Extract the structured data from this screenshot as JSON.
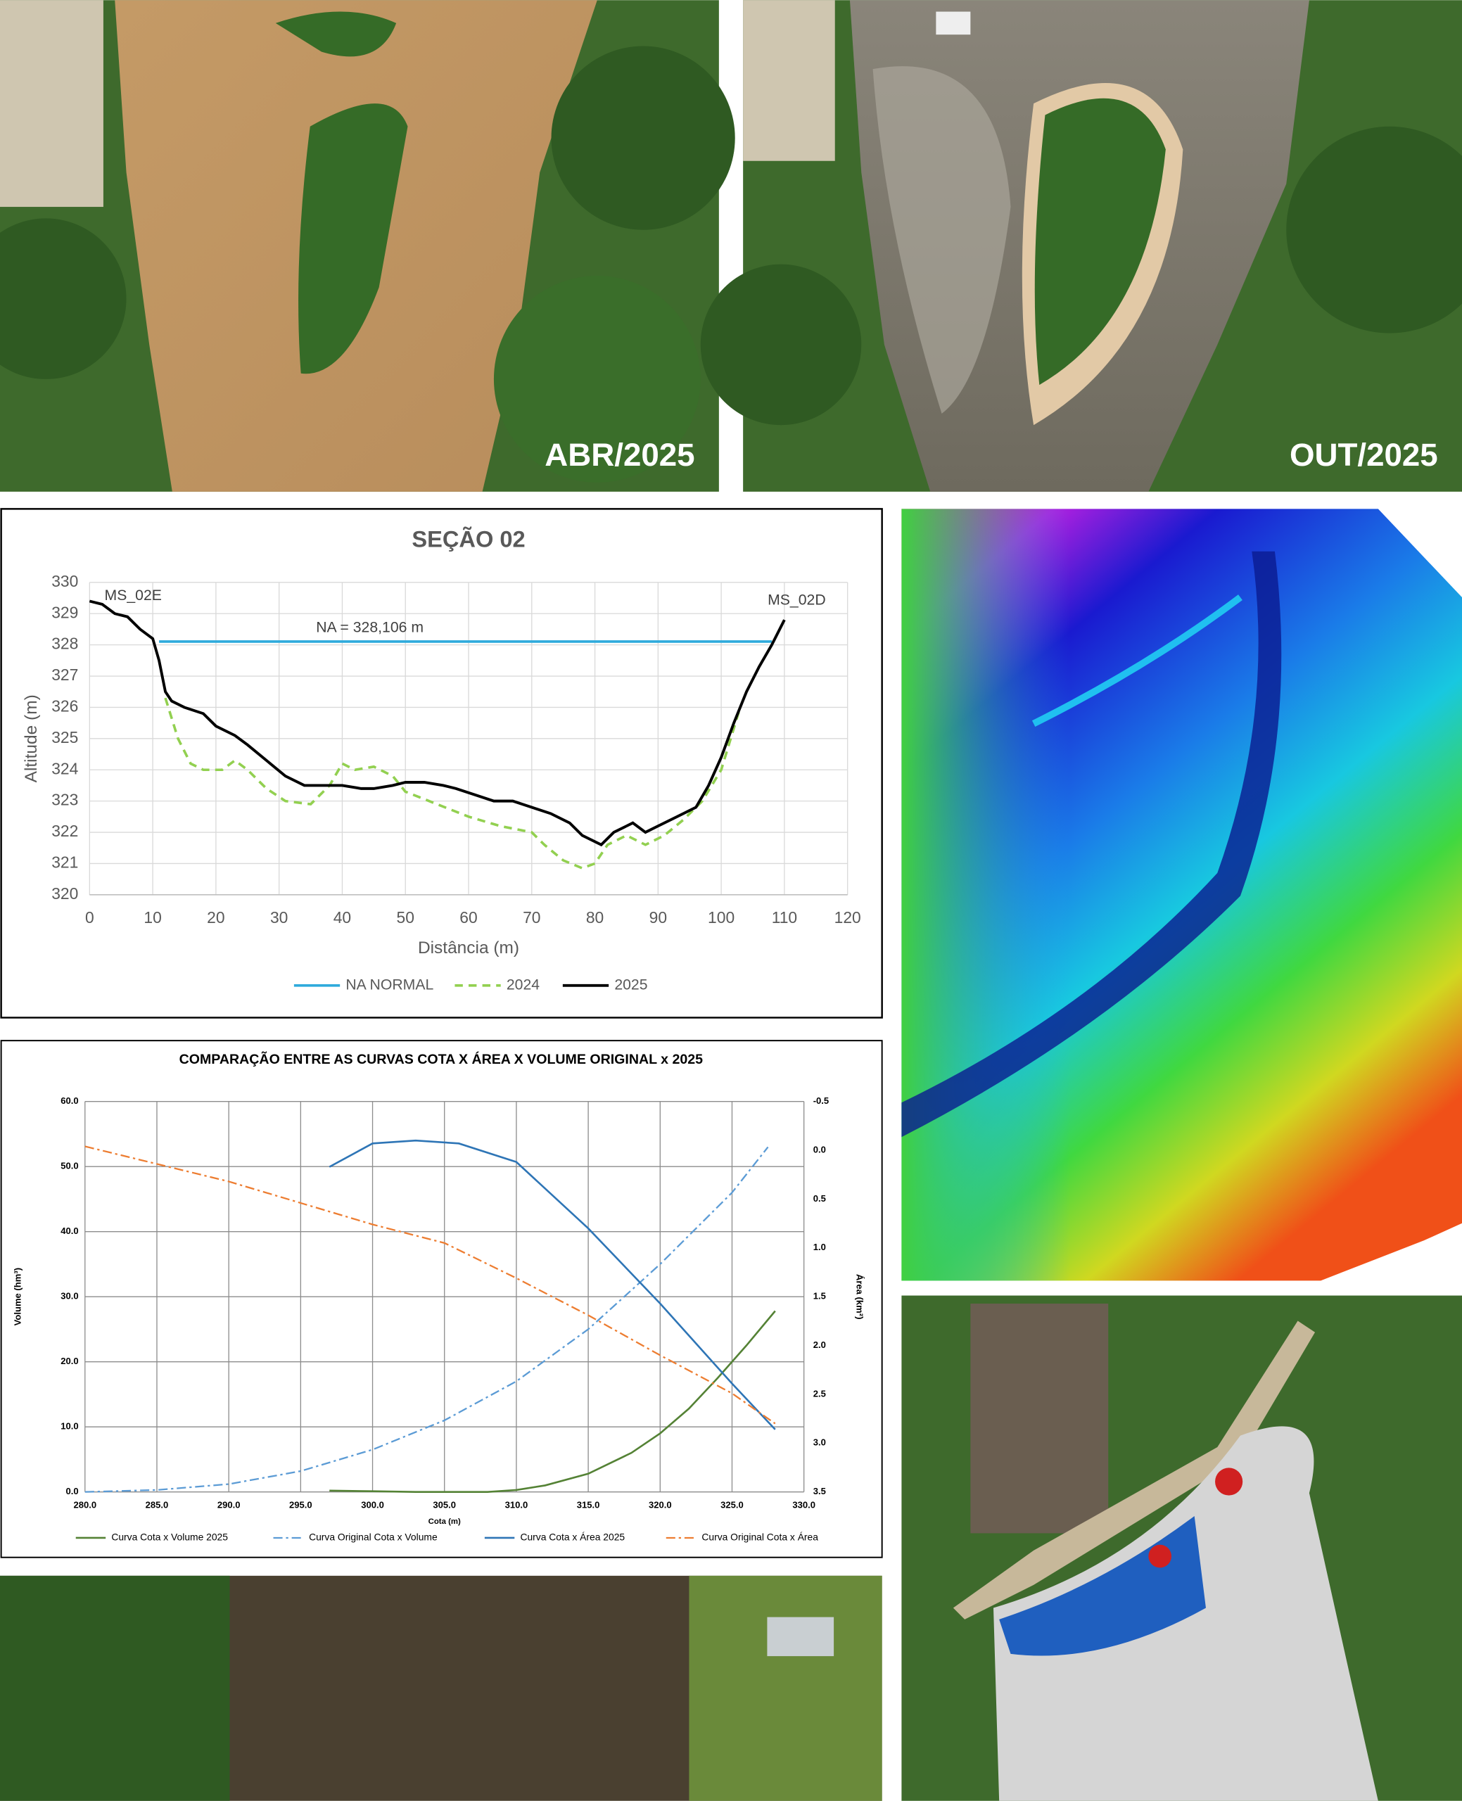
{
  "photos": [
    {
      "label": "ABR/2025"
    },
    {
      "label": "OUT/2025"
    }
  ],
  "chart_data": [
    {
      "type": "line",
      "title": "SEÇÃO 02",
      "x_label": "Distância (m)",
      "y_label": "Altitude (m)",
      "xlim": [
        0,
        120
      ],
      "xticks": [
        0,
        10,
        20,
        30,
        40,
        50,
        60,
        70,
        80,
        90,
        100,
        110,
        120
      ],
      "ylim": [
        320,
        330
      ],
      "yticks": [
        320,
        321,
        322,
        323,
        324,
        325,
        326,
        327,
        328,
        329,
        330
      ],
      "grid": true,
      "annotations": [
        "MS_02E",
        "NA = 328,106 m",
        "MS_02D"
      ],
      "series": [
        {
          "name": "NA NORMAL",
          "color": "#2eaadc",
          "style": "solid",
          "width": 2.2,
          "x": [
            11,
            108
          ],
          "values": [
            328.106,
            328.106
          ]
        },
        {
          "name": "2024",
          "color": "#92d050",
          "style": "dashed",
          "width": 2.2,
          "x": [
            12,
            14,
            16,
            18,
            21,
            23,
            25,
            28,
            31,
            35,
            38,
            40,
            42,
            45,
            48,
            50,
            55,
            60,
            65,
            70,
            72,
            75,
            78,
            80,
            82,
            85,
            88,
            91,
            94,
            97,
            100,
            103
          ],
          "values": [
            326.3,
            325.0,
            324.2,
            324.0,
            324.0,
            324.3,
            324.0,
            323.4,
            323.0,
            322.9,
            323.5,
            324.2,
            324.0,
            324.1,
            323.8,
            323.3,
            322.9,
            322.5,
            322.2,
            322.0,
            321.6,
            321.1,
            320.85,
            321.0,
            321.6,
            321.9,
            321.6,
            321.9,
            322.4,
            323.0,
            324.0,
            326.0
          ]
        },
        {
          "name": "2025",
          "color": "#000000",
          "style": "solid",
          "width": 2.4,
          "x": [
            0,
            2,
            4,
            6,
            8,
            10,
            11,
            12,
            13,
            15,
            18,
            20,
            23,
            25,
            28,
            31,
            34,
            37,
            40,
            43,
            45,
            48,
            50,
            53,
            56,
            58,
            61,
            64,
            67,
            70,
            73,
            76,
            78,
            81,
            83,
            86,
            88,
            90,
            93,
            96,
            98,
            100,
            102,
            104,
            106,
            108,
            110
          ],
          "values": [
            329.4,
            329.3,
            329.0,
            328.9,
            328.5,
            328.2,
            327.5,
            326.5,
            326.2,
            326.0,
            325.8,
            325.4,
            325.1,
            324.8,
            324.3,
            323.8,
            323.5,
            323.5,
            323.5,
            323.4,
            323.4,
            323.5,
            323.6,
            323.6,
            323.5,
            323.4,
            323.2,
            323.0,
            323.0,
            322.8,
            322.6,
            322.3,
            321.9,
            321.6,
            322.0,
            322.3,
            322.0,
            322.2,
            322.5,
            322.8,
            323.5,
            324.4,
            325.5,
            326.5,
            327.3,
            328.0,
            328.8
          ]
        }
      ]
    },
    {
      "type": "line",
      "title": "COMPARAÇÃO ENTRE AS CURVAS COTA X ÁREA X VOLUME ORIGINAL x 2025",
      "x_label": "Cota (m)",
      "y_label": "Volume (hm³)",
      "y2_label": "Área (km²)",
      "xlim": [
        280,
        330
      ],
      "xticks": [
        {
          "value": 280,
          "label": "280.0"
        },
        {
          "value": 285,
          "label": "285.0"
        },
        {
          "value": 290,
          "label": "290.0"
        },
        {
          "value": 295,
          "label": "295.0"
        },
        {
          "value": 300,
          "label": "300.0"
        },
        {
          "value": 305,
          "label": "305.0"
        },
        {
          "value": 310,
          "label": "310.0"
        },
        {
          "value": 315,
          "label": "315.0"
        },
        {
          "value": 320,
          "label": "320.0"
        },
        {
          "value": 325,
          "label": "325.0"
        },
        {
          "value": 330,
          "label": "330.0"
        }
      ],
      "ylim": [
        0,
        60
      ],
      "yticks": [
        {
          "value": 0,
          "label": "0.0"
        },
        {
          "value": 10,
          "label": "10.0"
        },
        {
          "value": 20,
          "label": "20.0"
        },
        {
          "value": 30,
          "label": "30.0"
        },
        {
          "value": 40,
          "label": "40.0"
        },
        {
          "value": 50,
          "label": "50.0"
        },
        {
          "value": 60,
          "label": "60.0"
        }
      ],
      "y2lim": [
        3.5,
        -0.5
      ],
      "y2ticks": [
        {
          "value": -0.5,
          "label": "-0.5"
        },
        {
          "value": 0,
          "label": "0.0"
        },
        {
          "value": 0.5,
          "label": "0.5"
        },
        {
          "value": 1,
          "label": "1.0"
        },
        {
          "value": 1.5,
          "label": "1.5"
        },
        {
          "value": 2,
          "label": "2.0"
        },
        {
          "value": 2.5,
          "label": "2.5"
        },
        {
          "value": 3,
          "label": "3.0"
        },
        {
          "value": 3.5,
          "label": "3.5"
        }
      ],
      "grid": true,
      "series": [
        {
          "name": "Curva Cota x Volume 2025",
          "color": "#548235",
          "style": "solid",
          "width": 1.6,
          "x": [
            297,
            300,
            303,
            308,
            310,
            312,
            315,
            318,
            320,
            322,
            324,
            326,
            328
          ],
          "values": [
            0.2,
            0.1,
            0,
            0,
            0.3,
            1.0,
            2.8,
            6,
            9,
            12.8,
            17.5,
            22.5,
            27.8
          ]
        },
        {
          "name": "Curva Original Cota x Volume",
          "color": "#5b9bd5",
          "style": "dashdot",
          "width": 1.4,
          "x": [
            280,
            285,
            290,
            295,
            300,
            305,
            310,
            315,
            320,
            325,
            327.5
          ],
          "values": [
            0,
            0.3,
            1.2,
            3.2,
            6.5,
            11,
            17,
            25,
            35,
            46,
            53
          ]
        },
        {
          "name": "Curva Cota x Área 2025",
          "color": "#2e75b6",
          "style": "solid",
          "width": 1.6,
          "axis": "y2",
          "x": [
            297,
            300,
            303,
            306,
            310,
            315,
            320,
            325,
            328
          ],
          "values": [
            0.17,
            -0.07,
            -0.1,
            -0.07,
            0.12,
            0.8,
            1.57,
            2.39,
            2.86
          ]
        },
        {
          "name": "Curva Original Cota x Área",
          "color": "#ed7d31",
          "style": "dashdot",
          "width": 1.4,
          "axis": "y2",
          "x": [
            280,
            285,
            290,
            300,
            305,
            310,
            315,
            320,
            325,
            328
          ],
          "values": [
            -0.04,
            0.14,
            0.32,
            0.76,
            0.95,
            1.31,
            1.69,
            2.1,
            2.49,
            2.8
          ]
        }
      ]
    }
  ]
}
